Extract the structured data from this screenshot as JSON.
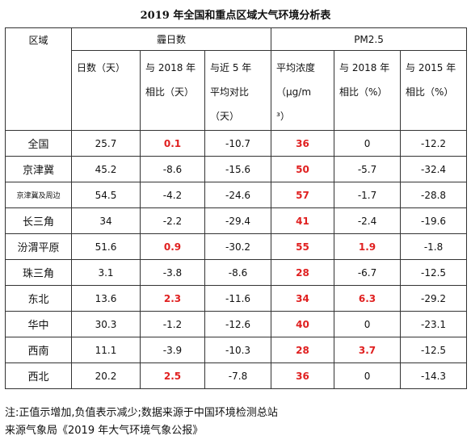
{
  "title": "2019 年全国和重点区域大气环境分析表",
  "header": {
    "region": "区域",
    "haze": "霾日数",
    "pm": "PM2.5",
    "cols": [
      [
        "日数（天）"
      ],
      [
        "与 2018 年",
        "相比（天）"
      ],
      [
        "与近 5 年",
        "平均对比",
        "（天）"
      ],
      [
        "平均浓度",
        "（μg/m",
        "³）"
      ],
      [
        "与 2018 年",
        "相比（%）"
      ],
      [
        "与 2015 年",
        "相比（%）"
      ]
    ]
  },
  "rows": [
    {
      "name": "全国",
      "v": [
        "25.7",
        "0.1",
        "-10.7",
        "36",
        "0",
        "-12.2"
      ],
      "red": [
        1,
        3
      ]
    },
    {
      "name": "京津冀",
      "v": [
        "45.2",
        "-8.6",
        "-15.6",
        "50",
        "-5.7",
        "-32.4"
      ],
      "red": [
        3
      ]
    },
    {
      "name": "京津冀及周边",
      "v": [
        "54.5",
        "-4.2",
        "-24.6",
        "57",
        "-1.7",
        "-28.8"
      ],
      "red": [
        3
      ],
      "small": true
    },
    {
      "name": "长三角",
      "v": [
        "34",
        "-2.2",
        "-29.4",
        "41",
        "-2.4",
        "-19.6"
      ],
      "red": [
        3
      ]
    },
    {
      "name": "汾渭平原",
      "v": [
        "51.6",
        "0.9",
        "-30.2",
        "55",
        "1.9",
        "-1.8"
      ],
      "red": [
        1,
        3,
        4
      ]
    },
    {
      "name": "珠三角",
      "v": [
        "3.1",
        "-3.8",
        "-8.6",
        "28",
        "-6.7",
        "-12.5"
      ],
      "red": [
        3
      ]
    },
    {
      "name": "东北",
      "v": [
        "13.6",
        "2.3",
        "-11.6",
        "34",
        "6.3",
        "-29.2"
      ],
      "red": [
        1,
        3,
        4
      ]
    },
    {
      "name": "华中",
      "v": [
        "30.3",
        "-1.2",
        "-12.6",
        "40",
        "0",
        "-23.1"
      ],
      "red": [
        3
      ]
    },
    {
      "name": "西南",
      "v": [
        "11.1",
        "-3.9",
        "-10.3",
        "28",
        "3.7",
        "-12.5"
      ],
      "red": [
        3,
        4
      ]
    },
    {
      "name": "西北",
      "v": [
        "20.2",
        "2.5",
        "-7.8",
        "36",
        "0",
        "-14.3"
      ],
      "red": [
        1,
        3
      ]
    }
  ],
  "notes": [
    "注:正值示增加,负值表示减少;数据来源于中国环境检测总站",
    "来源气象局《2019 年大气环境气象公报》"
  ],
  "colors": {
    "highlight": "#e02020",
    "border": "#333333"
  }
}
